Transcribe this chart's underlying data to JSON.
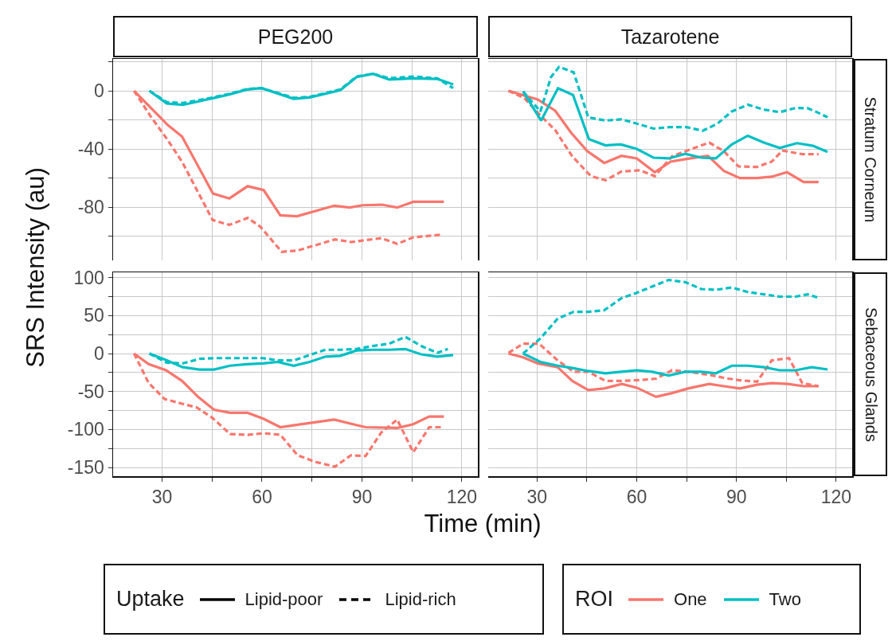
{
  "chart_data": [
    {
      "type": "line",
      "title": "PEG200",
      "ylabel": "SRS Intensity (au)",
      "tick_labels": "y",
      "grid": true,
      "xlim": [
        15.3,
        124.8
      ],
      "ylim": [
        -116.6,
        21.9
      ],
      "xticks": [
        30,
        {
          "value": 45,
          "label": null
        },
        60,
        {
          "value": 75,
          "label": null
        },
        90,
        {
          "value": 105,
          "label": null
        },
        120
      ],
      "yticks": [
        {
          "value": 20,
          "label": null
        },
        0,
        {
          "value": -20,
          "label": null
        },
        -40,
        {
          "value": -60,
          "label": null
        },
        -80,
        {
          "value": -100,
          "label": null
        }
      ],
      "series": [
        {
          "color": "#f8766d",
          "line_style": "solid",
          "x": [
            21.6,
            31.8,
            36,
            45.3,
            50.2,
            55.7,
            60.5,
            65.5,
            70.5,
            81.7,
            86.3,
            90.2,
            96,
            100.6,
            105.4,
            114.6
          ],
          "values": [
            0,
            -23.7,
            -31.5,
            -70.7,
            -74,
            -65.6,
            -68.3,
            -85.6,
            -86.3,
            -79,
            -80.3,
            -78.7,
            -78.3,
            -80.3,
            -76.3,
            -76.3
          ]
        },
        {
          "color": "#f8766d",
          "line_style": "dashed",
          "x": [
            21.6,
            26.4,
            31.8,
            36,
            45.2,
            50.2,
            55.7,
            59.5,
            65.9,
            70.7,
            81.9,
            86.7,
            95.8,
            100.6,
            105.4,
            114.2
          ],
          "values": [
            0,
            -17,
            -34.2,
            -48.8,
            -88.9,
            -92.2,
            -87.4,
            -93.4,
            -110.7,
            -109.8,
            -102.2,
            -104,
            -101.3,
            -105.3,
            -100.7,
            -98.9
          ]
        },
        {
          "color": "#00bfc4",
          "line_style": "solid",
          "x": [
            26.2,
            31.4,
            36.2,
            45.2,
            50.4,
            55.5,
            59.9,
            69.5,
            74.3,
            83.5,
            88.4,
            93.3,
            98.2,
            105.4,
            112.6,
            117.4
          ],
          "values": [
            0,
            -8.7,
            -9.7,
            -5.1,
            -2.4,
            0.9,
            1.8,
            -5.5,
            -4.6,
            0.4,
            9.5,
            11.7,
            7.7,
            8.6,
            8.2,
            4.4
          ]
        },
        {
          "color": "#00bfc4",
          "line_style": "dashed",
          "x": [
            26.2,
            31.4,
            36.2,
            45.2,
            50.4,
            55.5,
            59.9,
            69.5,
            74.3,
            83.5,
            88.4,
            93.3,
            98.2,
            105.4,
            112.6,
            117.4
          ],
          "values": [
            0,
            -7.8,
            -8.4,
            -4.6,
            -2,
            1.2,
            1.8,
            -4.8,
            -4.2,
            0.9,
            9.8,
            11.7,
            8.6,
            9.8,
            8.6,
            1.8
          ]
        }
      ]
    },
    {
      "type": "line",
      "title": "Tazarotene",
      "annotations": [
        "Stratum Corneum"
      ],
      "tick_labels": false,
      "grid": true,
      "xlim": [
        15.3,
        124.8
      ],
      "ylim": [
        -116.6,
        21.9
      ],
      "xticks": [
        30,
        {
          "value": 45,
          "label": null
        },
        60,
        {
          "value": 75,
          "label": null
        },
        90,
        {
          "value": 105,
          "label": null
        },
        120
      ],
      "yticks": [
        {
          "value": 20,
          "label": null
        },
        0,
        {
          "value": -20,
          "label": null
        },
        -40,
        {
          "value": -60,
          "label": null
        },
        -80,
        {
          "value": -100,
          "label": null
        }
      ],
      "series": [
        {
          "color": "#f8766d",
          "line_style": "solid",
          "x": [
            21.4,
            25.6,
            30.2,
            35.5,
            40.2,
            45.1,
            50.2,
            55.4,
            60,
            65.4,
            70.2,
            75,
            81.4,
            86.2,
            91,
            96.2,
            100.6,
            105.2,
            110.2,
            114.7
          ],
          "values": [
            0,
            -2.9,
            -6,
            -13.8,
            -28.7,
            -41.5,
            -49.6,
            -44.7,
            -46.5,
            -56,
            -48.7,
            -46.9,
            -44.7,
            -55.1,
            -60,
            -60,
            -59.1,
            -56,
            -62.7,
            -62.7
          ]
        },
        {
          "color": "#f8766d",
          "line_style": "dashed",
          "x": [
            21.4,
            26.2,
            30.6,
            35.4,
            40.6,
            46.2,
            50.6,
            55.4,
            61,
            65.4,
            70.6,
            75.4,
            81.8,
            86.2,
            90.6,
            96.2,
            100.6,
            103.8,
            109.8,
            114.7
          ],
          "values": [
            0,
            -5.1,
            -16,
            -26.9,
            -45.1,
            -58.7,
            -61.5,
            -55.5,
            -54.7,
            -58.7,
            -45.1,
            -40.9,
            -35.6,
            -41.5,
            -52,
            -52.4,
            -48.7,
            -41.1,
            -43.6,
            -43.6
          ]
        },
        {
          "color": "#00bfc4",
          "line_style": "solid",
          "x": [
            25.8,
            31.2,
            36.3,
            40.8,
            45.6,
            50.6,
            55.2,
            60,
            65,
            69.6,
            74.6,
            79.4,
            83.8,
            88.6,
            93.4,
            98.2,
            103,
            108.2,
            113,
            117.4
          ],
          "values": [
            -0.5,
            -20.5,
            1.8,
            -2.9,
            -33.3,
            -37.5,
            -36.9,
            -40,
            -46,
            -46.5,
            -43.3,
            -46,
            -46.5,
            -36.9,
            -30.9,
            -35.6,
            -39.3,
            -36,
            -37.8,
            -42
          ]
        },
        {
          "color": "#00bfc4",
          "line_style": "dashed",
          "x": [
            25.8,
            31,
            34.2,
            36.6,
            41,
            45.4,
            50.6,
            55.4,
            60.2,
            65,
            69.8,
            75,
            79.8,
            84.2,
            88.6,
            93.4,
            98.2,
            103,
            107.8,
            111.4,
            114.6,
            117.4
          ],
          "values": [
            -0.5,
            -14.2,
            9.5,
            16.4,
            12.7,
            -18.2,
            -20.5,
            -19.6,
            -22.7,
            -26,
            -25,
            -25,
            -27.5,
            -22.7,
            -14.2,
            -9.6,
            -12.9,
            -14.7,
            -11.8,
            -12,
            -15.1,
            -18.2
          ]
        }
      ]
    },
    {
      "type": "line",
      "xlabel": "Time (min)",
      "legend": "bottom",
      "legend_title": "Uptake",
      "annotations": [
        "Lipid-poor",
        "Lipid-rich"
      ],
      "grid": true,
      "xlim": [
        15.3,
        124.8
      ],
      "ylim": [
        -161.5,
        107
      ],
      "xticks": [
        30,
        {
          "value": 45,
          "label": null
        },
        60,
        {
          "value": 75,
          "label": null
        },
        90,
        {
          "value": 105,
          "label": null
        },
        120
      ],
      "yticks": [
        100,
        {
          "value": 75,
          "label": null
        },
        50,
        {
          "value": 25,
          "label": null
        },
        0,
        {
          "value": -25,
          "label": null
        },
        -50,
        {
          "value": -75,
          "label": null
        },
        -100,
        {
          "value": -125,
          "label": null
        },
        -150
      ],
      "series": [
        {
          "color": "#f8766d",
          "line_style": "solid",
          "x": [
            21.6,
            26,
            31.2,
            36,
            40.8,
            45.6,
            50.4,
            55.7,
            60.5,
            65.5,
            70.3,
            81.7,
            86.3,
            91.1,
            100.6,
            105.4,
            110.2,
            114.6
          ],
          "values": [
            0,
            -14,
            -22,
            -36,
            -57,
            -74,
            -78,
            -78,
            -86,
            -97,
            -94,
            -87,
            -92,
            -97,
            -98,
            -93,
            -83,
            -83
          ]
        },
        {
          "color": "#f8766d",
          "line_style": "dashed",
          "x": [
            21.6,
            26,
            30.8,
            36,
            40.4,
            45.2,
            50.4,
            55.7,
            60.5,
            65.5,
            70.7,
            76.3,
            81.9,
            86.7,
            91.1,
            95.8,
            100.6,
            105.4,
            110.2,
            114.6
          ],
          "values": [
            0,
            -39,
            -60,
            -66,
            -71,
            -85,
            -106,
            -107,
            -105,
            -107,
            -134,
            -143,
            -149,
            -134,
            -135,
            -104,
            -87,
            -130,
            -97,
            -97
          ]
        },
        {
          "color": "#00bfc4",
          "line_style": "solid",
          "x": [
            26.2,
            31.4,
            36.2,
            41.2,
            45.6,
            50.4,
            55.5,
            60.3,
            64.7,
            69.5,
            74.3,
            79.1,
            83.5,
            88.4,
            93.3,
            98.2,
            103,
            107.8,
            112.6,
            117.4
          ],
          "values": [
            0,
            -9,
            -18,
            -21,
            -21,
            -16,
            -14,
            -13,
            -11,
            -16,
            -11,
            -4,
            -3,
            4,
            5,
            5,
            6,
            -1,
            -4,
            -2
          ]
        },
        {
          "color": "#00bfc4",
          "line_style": "dashed",
          "x": [
            26.2,
            31.4,
            36.2,
            41.2,
            45.6,
            50.4,
            55.5,
            60.3,
            64.7,
            69.5,
            74.3,
            79.1,
            83.5,
            88.4,
            93.3,
            98.2,
            103,
            107.8,
            112.6,
            115.8
          ],
          "values": [
            0,
            -12,
            -13,
            -7,
            -6,
            -6,
            -6,
            -6,
            -9,
            -9,
            -2,
            5,
            5,
            6,
            10,
            13,
            22,
            10,
            1,
            6
          ]
        }
      ]
    },
    {
      "type": "line",
      "annotations": [
        "Sebaceous Glands"
      ],
      "legend": "bottom",
      "legend_title": "ROI",
      "tick_labels": "x",
      "grid": true,
      "xlim": [
        15.3,
        124.8
      ],
      "ylim": [
        -161.5,
        107
      ],
      "xticks": [
        30,
        {
          "value": 45,
          "label": null
        },
        60,
        {
          "value": 75,
          "label": null
        },
        90,
        {
          "value": 105,
          "label": null
        },
        120
      ],
      "yticks": [
        100,
        {
          "value": 75,
          "label": null
        },
        50,
        {
          "value": 25,
          "label": null
        },
        0,
        {
          "value": -25,
          "label": null
        },
        -50,
        {
          "value": -75,
          "label": null
        },
        -100,
        {
          "value": -125,
          "label": null
        },
        -150
      ],
      "series": [
        {
          "name": "One",
          "color": "#f8766d",
          "line_style": "solid",
          "x": [
            21.4,
            25.8,
            30.2,
            36.2,
            40.6,
            45.4,
            50.2,
            55.5,
            60,
            65.8,
            70.6,
            75.4,
            81.8,
            86.2,
            91,
            96.2,
            100.6,
            105.4,
            110.2,
            114.7
          ],
          "values": [
            0,
            -5,
            -13,
            -18,
            -36,
            -48,
            -46,
            -40,
            -45,
            -57,
            -52,
            -46,
            -40,
            -43,
            -46,
            -41,
            -39,
            -40,
            -43,
            -43
          ]
        },
        {
          "color": "#f8766d",
          "line_style": "dashed",
          "x": [
            21.4,
            25.8,
            30.6,
            36.2,
            41,
            45.4,
            50.6,
            55.4,
            61,
            65.8,
            70.6,
            75.4,
            81.8,
            86.2,
            90.6,
            96.2,
            100.6,
            105.8,
            109.8,
            114.7
          ],
          "values": [
            1,
            13,
            13,
            -9,
            -24,
            -24,
            -36,
            -36,
            -35,
            -33,
            -22,
            -24,
            -28,
            -32,
            -35,
            -37,
            -9,
            -6,
            -39,
            -43
          ]
        },
        {
          "name": "Two",
          "color": "#00bfc4",
          "line_style": "solid",
          "x": [
            25.8,
            31,
            36.2,
            40.6,
            45.4,
            50.6,
            55.4,
            60,
            64.6,
            69.6,
            74.6,
            79.4,
            83.8,
            88.6,
            93.4,
            98.2,
            103,
            107.8,
            112.6,
            117.4
          ],
          "values": [
            0,
            -11,
            -16,
            -19,
            -23,
            -26,
            -24,
            -22,
            -24,
            -29,
            -24,
            -24,
            -26,
            -16,
            -16,
            -18,
            -22,
            -22,
            -18,
            -21
          ]
        },
        {
          "color": "#00bfc4",
          "line_style": "dashed",
          "x": [
            25.8,
            31,
            36.2,
            41,
            45.4,
            50.2,
            55.4,
            60,
            65,
            69.6,
            74.6,
            79.4,
            83.8,
            88.6,
            93.4,
            98.2,
            103,
            107.8,
            111.4,
            115
          ],
          "values": [
            0,
            20,
            46,
            55,
            55,
            57,
            73,
            80,
            89,
            97,
            94,
            85,
            84,
            87,
            81,
            78,
            75,
            75,
            78,
            73
          ]
        }
      ]
    }
  ]
}
